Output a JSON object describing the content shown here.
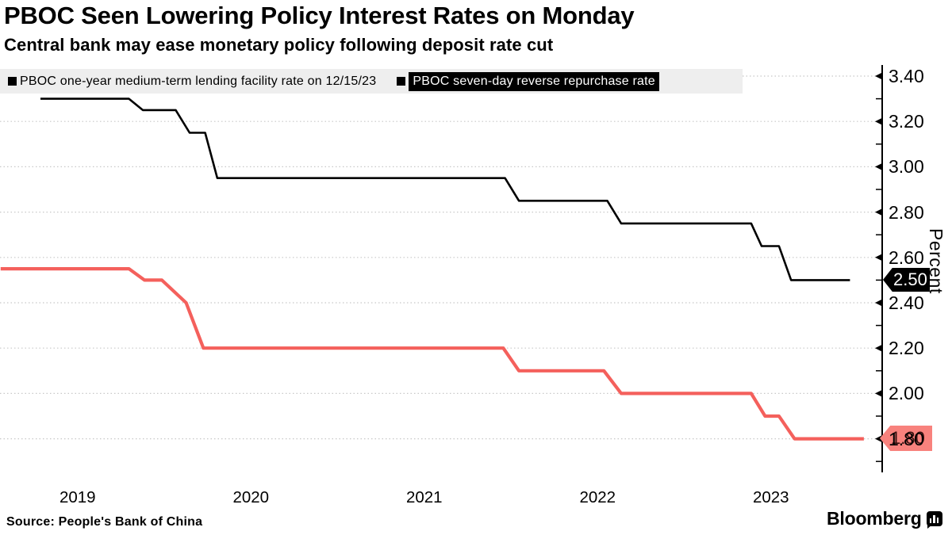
{
  "header": {
    "title": "PBOC Seen Lowering Policy Interest Rates on Monday",
    "subtitle": "Central bank may ease monetary policy following deposit rate cut"
  },
  "legend": {
    "items": [
      {
        "label": "PBOC one-year medium-term lending facility rate on 12/15/23",
        "marker_color": "#000000",
        "highlighted": false
      },
      {
        "label": "PBOC seven-day reverse repurchase rate",
        "marker_color": "#000000",
        "highlighted": true
      }
    ]
  },
  "chart_data": {
    "type": "line",
    "title": "PBOC Seen Lowering Policy Interest Rates on Monday",
    "subtitle": "Central bank may ease monetary policy following deposit rate cut",
    "xlabel": "",
    "ylabel": "Percent",
    "ylim": [
      1.65,
      3.45
    ],
    "grid": "horizontal-dotted",
    "legend_position": "top",
    "x_tick_years": [
      "2019",
      "2020",
      "2021",
      "2022",
      "2023"
    ],
    "y_tick_labels": [
      "3.40",
      "3.20",
      "3.00",
      "2.80",
      "2.60",
      "2.40",
      "2.20",
      "2.00",
      "1.80"
    ],
    "y_tick_values": [
      3.4,
      3.2,
      3.0,
      2.8,
      2.6,
      2.4,
      2.2,
      2.0,
      1.8
    ],
    "y_minor_tick_values": [
      3.3,
      3.1,
      2.9,
      2.7,
      2.5,
      2.3,
      2.1,
      1.9,
      1.7
    ],
    "series": [
      {
        "name": "PBOC one-year medium-term lending facility rate on 12/15/23",
        "color": "#000000",
        "line_width": 2.6,
        "last_value": 2.5,
        "step_levels": [
          3.3,
          3.25,
          3.15,
          2.95,
          2.85,
          2.75,
          2.65,
          2.5
        ],
        "path": [
          [
            2019.3,
            3.3
          ],
          [
            2019.81,
            3.3
          ],
          [
            2019.89,
            3.25
          ],
          [
            2020.08,
            3.25
          ],
          [
            2020.16,
            3.15
          ],
          [
            2020.25,
            3.15
          ],
          [
            2020.32,
            2.95
          ],
          [
            2021.98,
            2.95
          ],
          [
            2022.06,
            2.85
          ],
          [
            2022.57,
            2.85
          ],
          [
            2022.65,
            2.75
          ],
          [
            2023.4,
            2.75
          ],
          [
            2023.46,
            2.65
          ],
          [
            2023.56,
            2.65
          ],
          [
            2023.63,
            2.5
          ],
          [
            2023.97,
            2.5
          ]
        ]
      },
      {
        "name": "PBOC seven-day reverse repurchase rate",
        "color": "#f4605c",
        "line_width": 4.2,
        "last_value": 1.8,
        "step_levels": [
          2.55,
          2.5,
          2.4,
          2.2,
          2.1,
          2.0,
          1.9,
          1.8
        ],
        "path": [
          [
            2019.07,
            2.55
          ],
          [
            2019.81,
            2.55
          ],
          [
            2019.9,
            2.5
          ],
          [
            2020.0,
            2.5
          ],
          [
            2020.14,
            2.4
          ],
          [
            2020.24,
            2.2
          ],
          [
            2021.97,
            2.2
          ],
          [
            2022.06,
            2.1
          ],
          [
            2022.55,
            2.1
          ],
          [
            2022.65,
            2.0
          ],
          [
            2023.4,
            2.0
          ],
          [
            2023.48,
            1.9
          ],
          [
            2023.56,
            1.9
          ],
          [
            2023.65,
            1.8
          ],
          [
            2024.05,
            1.8
          ]
        ]
      }
    ],
    "value_badges": [
      {
        "label": "2.50",
        "value": 2.5,
        "bg": "#000000",
        "text_color": "#ffffff"
      },
      {
        "label": "1.80",
        "value": 1.8,
        "bg": "#f8827d",
        "text_color": "#38100f"
      }
    ]
  },
  "colors": {
    "gridline": "#c8c8c8",
    "axis": "#000000",
    "legend_bg": "#eeeeee",
    "black_series": "#000000",
    "red_series": "#f4605c"
  },
  "footer": {
    "source": "Source: People's Bank of China",
    "brand": "Bloomberg"
  }
}
